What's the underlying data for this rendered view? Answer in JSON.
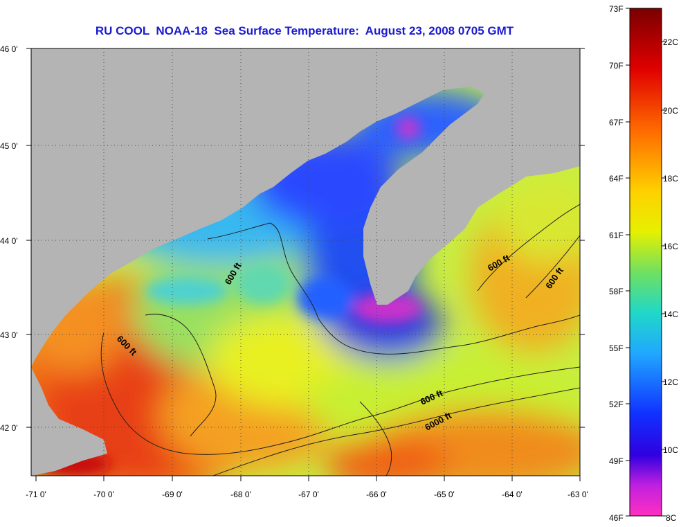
{
  "title": "RU COOL  NOAA-18  Sea Surface Temperature:  August 23, 2008 0705 GMT",
  "lat_labels": [
    "46 0'",
    "45 0'",
    "44 0'",
    "43 0'",
    "42 0'"
  ],
  "lon_labels": [
    "-71 0'",
    "-70 0'",
    "-69 0'",
    "-68 0'",
    "-67 0'",
    "-66 0'",
    "-65 0'",
    "-64 0'",
    "-63 0'"
  ],
  "contour_labels": [
    "600 ft",
    "600 ft",
    "600 ft",
    "600 ft",
    "600 ft",
    "6000 ft"
  ],
  "colorbar": {
    "fahrenheit": [
      "73F",
      "70F",
      "67F",
      "64F",
      "61F",
      "58F",
      "55F",
      "52F",
      "49F",
      "46F"
    ],
    "celsius": [
      "22C",
      "20C",
      "18C",
      "16C",
      "14C",
      "12C",
      "10C",
      "8C"
    ]
  },
  "colors": {
    "land": "#b4b4b4",
    "title": "#1a1ad0",
    "warm": "#e83a10",
    "cool": "#1a3cf0",
    "cold": "#f020b8"
  }
}
